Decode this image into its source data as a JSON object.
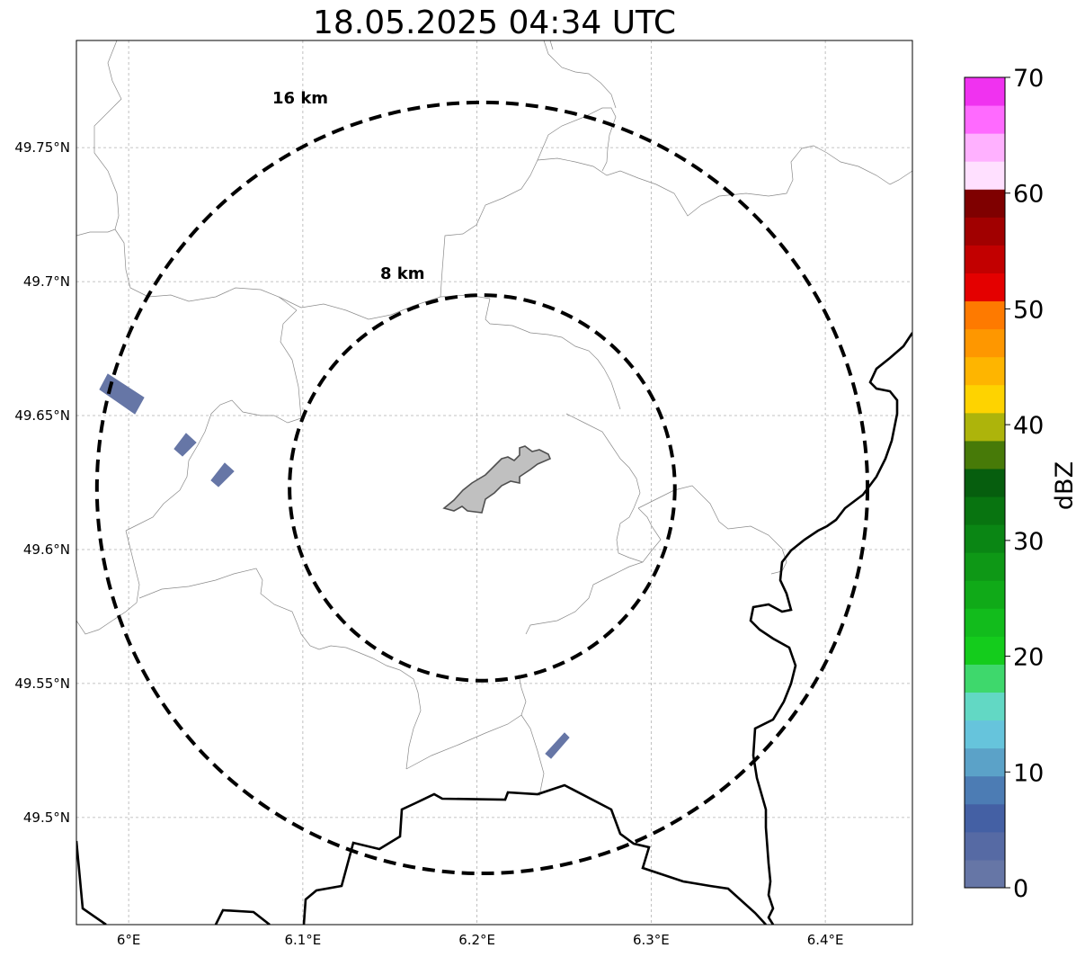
{
  "title": "18.05.2025 04:34 UTC",
  "map": {
    "lat_ticks": [
      {
        "label": "49.75°N",
        "value": 49.75
      },
      {
        "label": "49.7°N",
        "value": 49.7
      },
      {
        "label": "49.65°N",
        "value": 49.65
      },
      {
        "label": "49.6°N",
        "value": 49.6
      },
      {
        "label": "49.55°N",
        "value": 49.55
      },
      {
        "label": "49.5°N",
        "value": 49.5
      }
    ],
    "lon_ticks": [
      {
        "label": "6°E",
        "value": 6.0
      },
      {
        "label": "6.1°E",
        "value": 6.1
      },
      {
        "label": "6.2°E",
        "value": 6.2
      },
      {
        "label": "6.3°E",
        "value": 6.3
      },
      {
        "label": "6.4°E",
        "value": 6.4
      }
    ],
    "extent": {
      "lon": [
        5.97,
        6.45
      ],
      "lat": [
        49.46,
        49.79
      ]
    },
    "gridlines": true,
    "range_rings": [
      {
        "label": "8 km",
        "radius_km": 8
      },
      {
        "label": "16 km",
        "radius_km": 16
      }
    ],
    "center": {
      "lon": 6.203,
      "lat": 49.623
    }
  },
  "colorbar": {
    "label": "dBZ",
    "ticks": [
      "0",
      "10",
      "20",
      "30",
      "40",
      "50",
      "60",
      "70"
    ],
    "colors": [
      "#6676a6",
      "#566aa4",
      "#4460a4",
      "#4c7cb4",
      "#5ba2c8",
      "#66c4dc",
      "#62d8c4",
      "#3ed86c",
      "#14cc1c",
      "#12bc1c",
      "#10aa18",
      "#0e9816",
      "#0a8614",
      "#087410",
      "#065e0e",
      "#477a08",
      "#adb40b",
      "#fed300",
      "#feb500",
      "#fe9700",
      "#fe7a00",
      "#e40000",
      "#c20000",
      "#a10000",
      "#7f0000",
      "#ffe0ff",
      "#ffb1ff",
      "#ff6aff",
      "#f032f0"
    ]
  },
  "echo_color": "#6676a6",
  "city_fill": "#c0c0c0"
}
